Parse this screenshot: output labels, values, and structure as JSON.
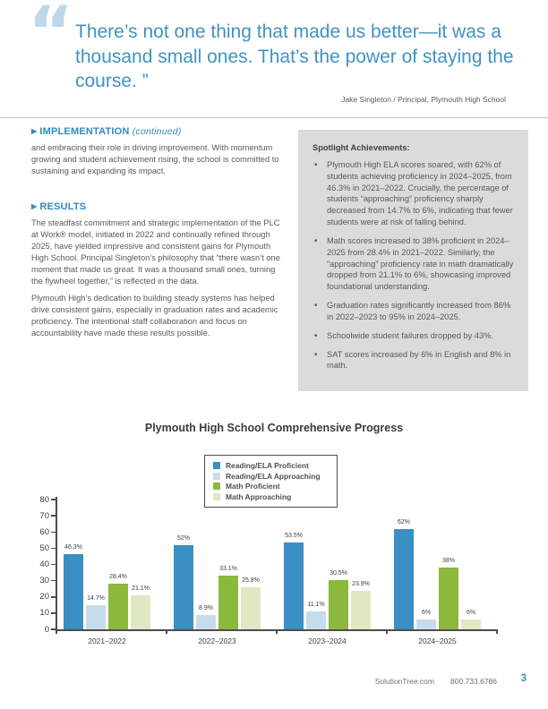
{
  "quote": {
    "mark": "“",
    "text": "There’s not one thing that made us better—it was a thousand small ones. That’s the power of staying the course. ”",
    "attribution": "Jake Singleton / Principal, Plymouth High School"
  },
  "sections": {
    "implementation": {
      "marker": "▶",
      "title": "IMPLEMENTATION",
      "continued": "(continued)",
      "body": "and embracing their role in driving improvement. With momentum growing and student achievement rising, the school is committed to sustaining and expanding its impact."
    },
    "results": {
      "marker": "▶",
      "title": "RESULTS",
      "paragraphs": [
        "The steadfast commitment and strategic implementation of the PLC at Work® model, initiated in 2022 and continually refined through 2025, have yielded impressive and consistent gains for Plymouth High School. Principal Singleton’s philosophy that “there wasn’t one moment that made us great. It was a thousand small ones, turning the flywheel together,” is reflected in the data.",
        "Plymouth High’s dedication to building steady systems has helped drive consistent gains, especially in graduation rates and academic proficiency. The intentional staff collaboration and focus on accountability have made these results possible."
      ]
    }
  },
  "spotlight": {
    "title": "Spotlight Achievements:",
    "bullets": [
      "Plymouth High ELA scores soared, with 62% of students achieving proficiency in 2024–2025, from 46.3% in 2021–2022. Crucially, the percentage of students “approaching” proficiency sharply decreased from 14.7% to 6%, indicating that fewer students were at risk of falling behind.",
      "Math scores increased to 38% proficient in 2024–2025 from 28.4% in 2021–2022. Similarly, the “approaching” proficiency rate in math dramatically dropped from 21.1% to 6%, showcasing improved foundational understanding.",
      "Graduation rates significantly increased from 86% in 2022–2023 to 95% in 2024–2025.",
      "Schoolwide student failures dropped by 43%.",
      "SAT scores increased by 6% in English and 8% in math."
    ]
  },
  "chart_data": {
    "type": "bar",
    "title": "Plymouth High School Comprehensive Progress",
    "categories": [
      "2021–2022",
      "2022–2023",
      "2023–2024",
      "2024–2025"
    ],
    "series": [
      {
        "name": "Reading/ELA Proficient",
        "color": "#3a8fc3",
        "values": [
          46.3,
          52,
          53.5,
          62
        ],
        "labels": [
          "46.3%",
          "52%",
          "53.5%",
          "62%"
        ]
      },
      {
        "name": "Reading/ELA Approaching",
        "color": "#c7dcea",
        "values": [
          14.7,
          8.9,
          11.1,
          6
        ],
        "labels": [
          "14.7%",
          "8.9%",
          "11.1%",
          "6%"
        ]
      },
      {
        "name": "Math Proficient",
        "color": "#8db83e",
        "values": [
          28.4,
          33.1,
          30.5,
          38
        ],
        "labels": [
          "28.4%",
          "33.1%",
          "30.5%",
          "38%"
        ]
      },
      {
        "name": "Math Approaching",
        "color": "#dfe8c3",
        "values": [
          21.1,
          25.8,
          23.9,
          6
        ],
        "labels": [
          "21.1%",
          "25.8%",
          "23.9%",
          "6%"
        ]
      }
    ],
    "ylim": [
      0,
      80
    ],
    "yticks": [
      0,
      10,
      20,
      30,
      40,
      50,
      60,
      70,
      80
    ],
    "xlabel": "",
    "ylabel": "",
    "grid": false,
    "legend_position": "top-center"
  },
  "footer": {
    "website": "SolutionTree.com",
    "phone": "800.733.6786",
    "page_number": "3"
  },
  "colors": {
    "accent_blue": "#2e8cbe",
    "quote_blue": "#4292c2",
    "quote_mark_blue": "#bed8ea",
    "spotlight_box_gray": "#dbdbdb",
    "body_text_gray": "#58595b"
  }
}
